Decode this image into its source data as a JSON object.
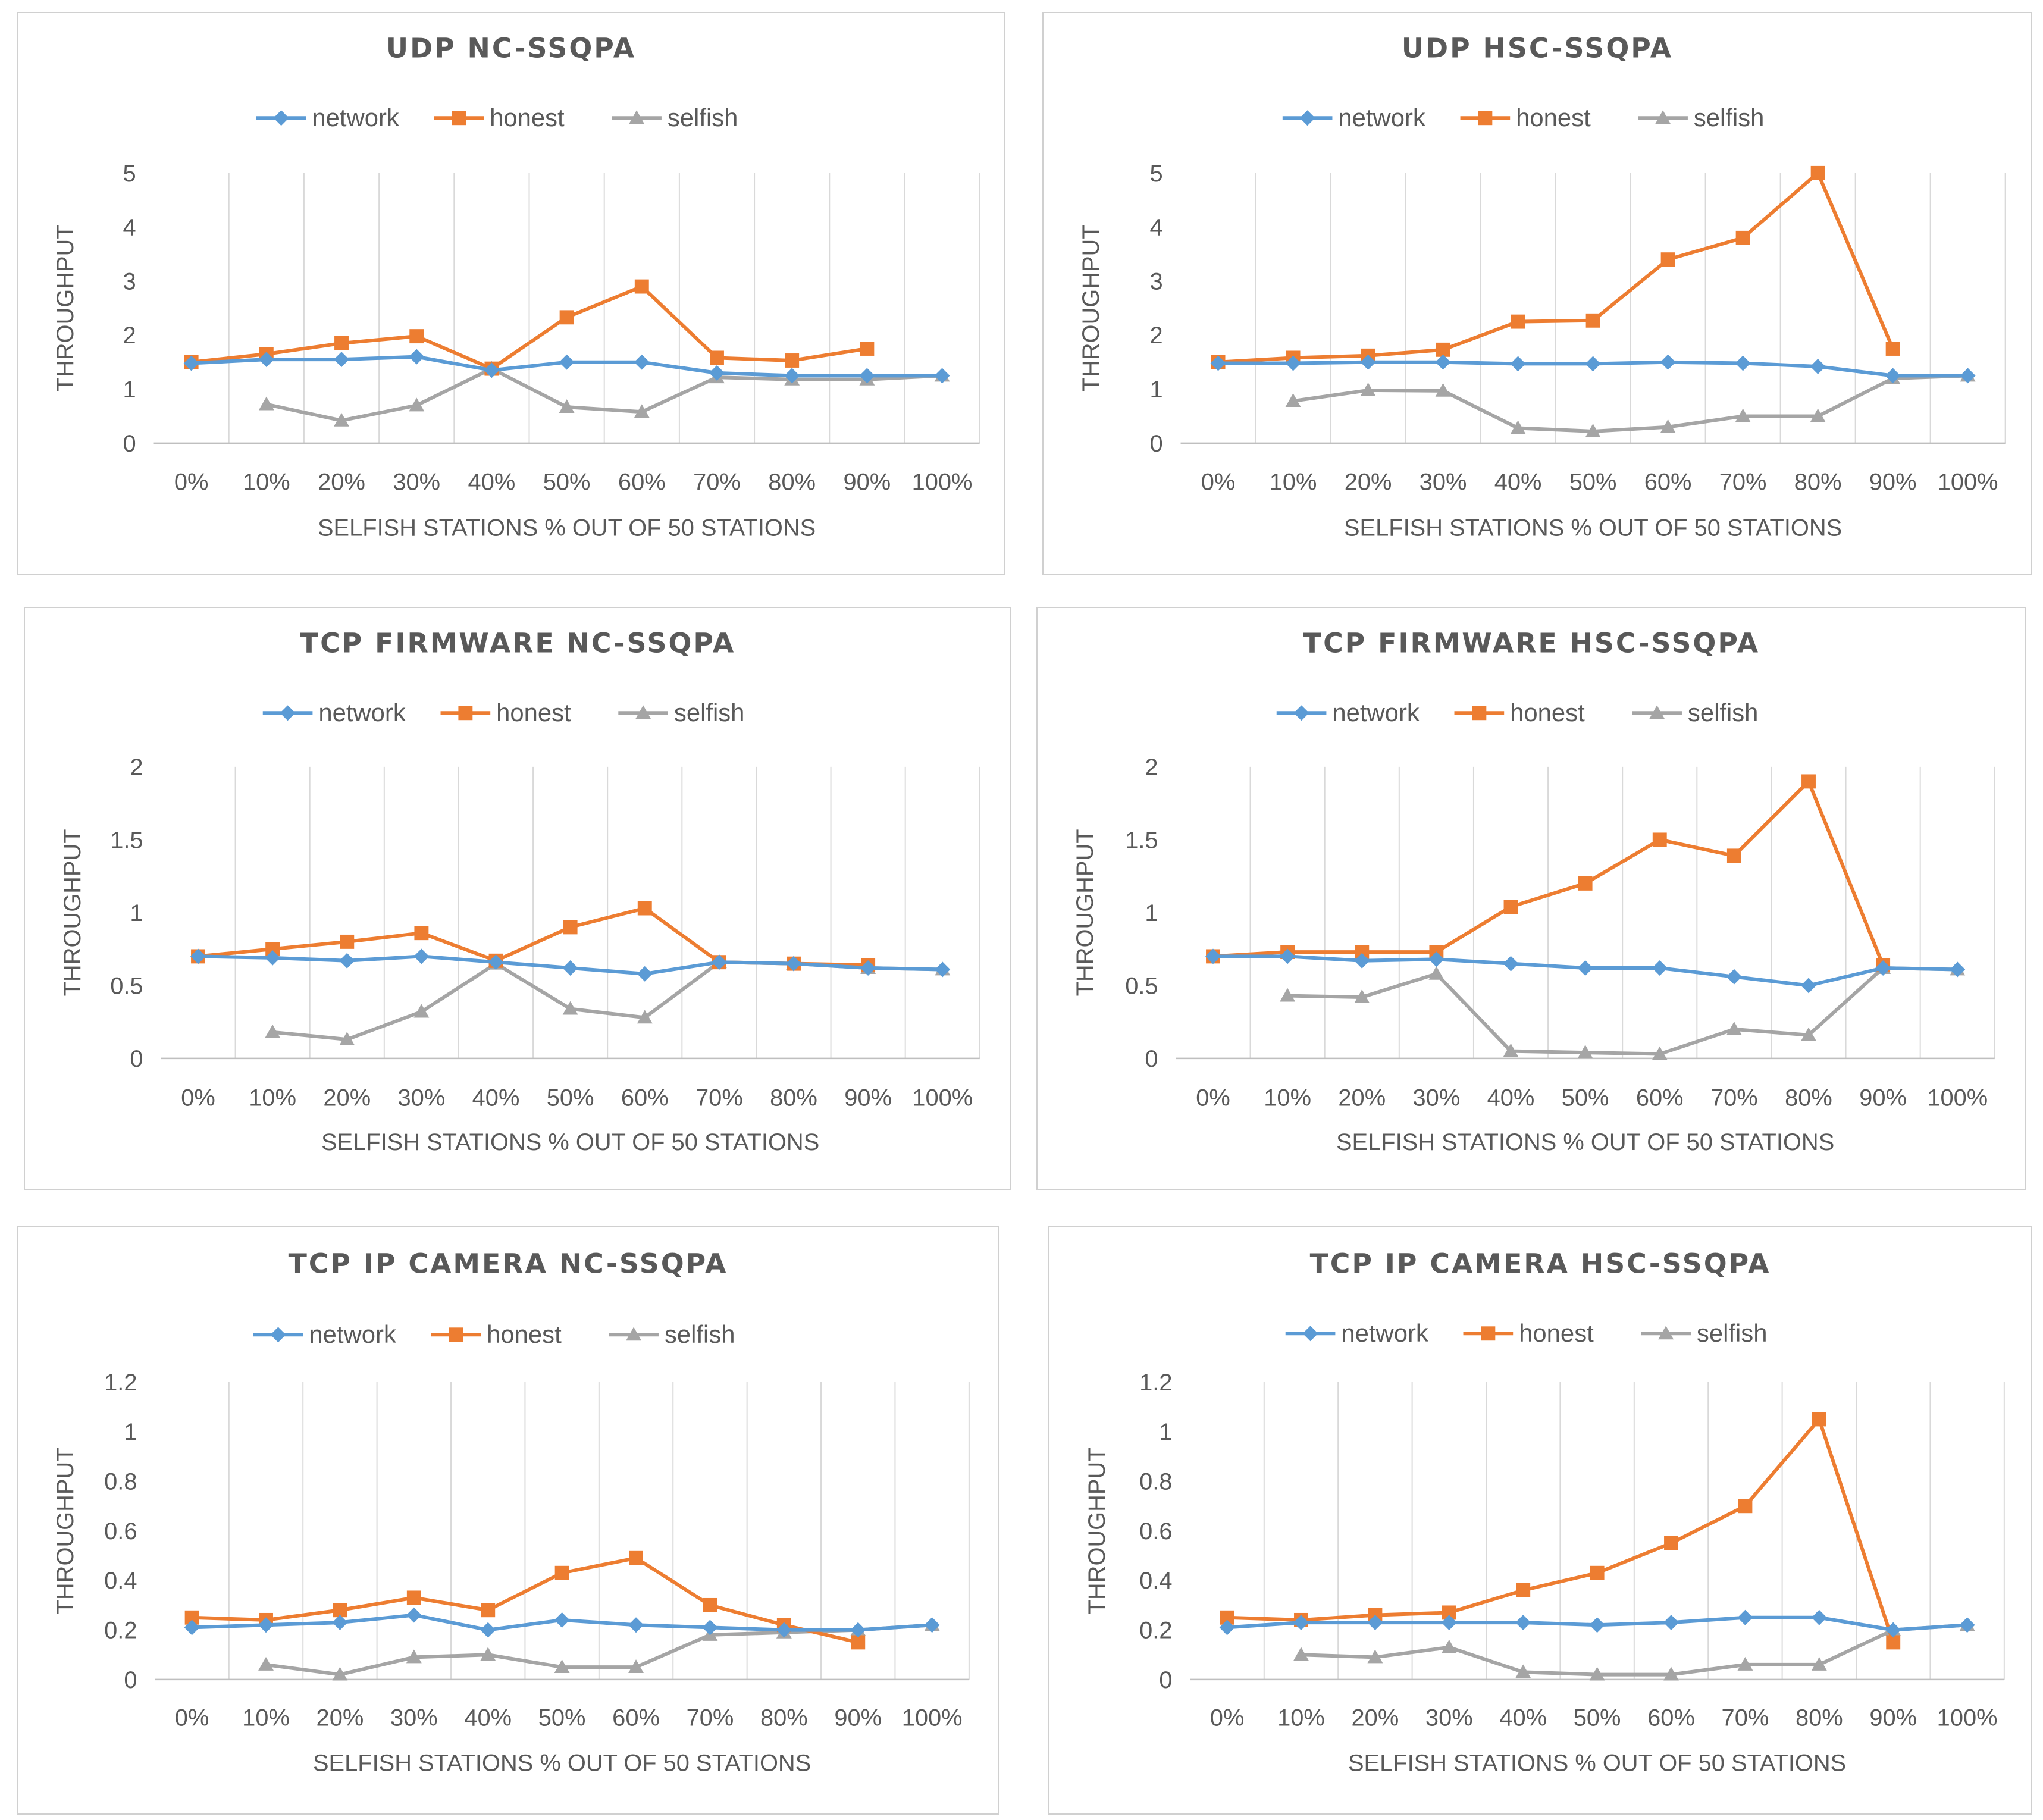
{
  "chart_data": [
    {
      "type": "line",
      "title": "UDP NC-SSQPA",
      "xlabel": "SELFISH STATIONS % OUT OF 50 STATIONS",
      "ylabel": "THROUGHPUT",
      "categories": [
        "0%",
        "10%",
        "20%",
        "30%",
        "40%",
        "50%",
        "60%",
        "70%",
        "80%",
        "90%",
        "100%"
      ],
      "ylim": [
        0,
        5
      ],
      "yticks": [
        "0",
        "1",
        "2",
        "3",
        "4",
        "5"
      ],
      "series": [
        {
          "name": "network",
          "color": "#5b9bd5",
          "marker": "diamond",
          "values": [
            1.48,
            1.55,
            1.55,
            1.6,
            1.35,
            1.5,
            1.5,
            1.3,
            1.25,
            1.25,
            1.25
          ]
        },
        {
          "name": "honest",
          "color": "#ed7d31",
          "marker": "square",
          "values": [
            1.5,
            1.65,
            1.85,
            1.98,
            1.38,
            2.33,
            2.9,
            1.58,
            1.53,
            1.75,
            null
          ]
        },
        {
          "name": "selfish",
          "color": "#a5a5a5",
          "marker": "triangle",
          "values": [
            null,
            0.72,
            0.42,
            0.7,
            1.38,
            0.67,
            0.58,
            1.22,
            1.18,
            1.18,
            1.25
          ]
        }
      ]
    },
    {
      "type": "line",
      "title": "UDP HSC-SSQPA",
      "xlabel": "SELFISH STATIONS % OUT OF 50 STATIONS",
      "ylabel": "THROUGHPUT",
      "categories": [
        "0%",
        "10%",
        "20%",
        "30%",
        "40%",
        "50%",
        "60%",
        "70%",
        "80%",
        "90%",
        "100%"
      ],
      "ylim": [
        0,
        5
      ],
      "yticks": [
        "0",
        "1",
        "2",
        "3",
        "4",
        "5"
      ],
      "series": [
        {
          "name": "network",
          "color": "#5b9bd5",
          "marker": "diamond",
          "values": [
            1.48,
            1.48,
            1.5,
            1.5,
            1.47,
            1.47,
            1.5,
            1.48,
            1.42,
            1.25,
            1.25
          ]
        },
        {
          "name": "honest",
          "color": "#ed7d31",
          "marker": "square",
          "values": [
            1.5,
            1.58,
            1.62,
            1.73,
            2.25,
            2.27,
            3.4,
            3.8,
            5.0,
            1.75,
            null
          ]
        },
        {
          "name": "selfish",
          "color": "#a5a5a5",
          "marker": "triangle",
          "values": [
            null,
            0.78,
            0.98,
            0.97,
            0.28,
            0.22,
            0.3,
            0.5,
            0.5,
            1.2,
            1.25
          ]
        }
      ]
    },
    {
      "type": "line",
      "title": "TCP FIRMWARE NC-SSQPA",
      "xlabel": "SELFISH STATIONS % OUT OF 50 STATIONS",
      "ylabel": "THROUGHPUT",
      "categories": [
        "0%",
        "10%",
        "20%",
        "30%",
        "40%",
        "50%",
        "60%",
        "70%",
        "80%",
        "90%",
        "100%"
      ],
      "ylim": [
        0,
        2
      ],
      "yticks": [
        "0",
        "0.5",
        "1",
        "1.5",
        "2"
      ],
      "series": [
        {
          "name": "network",
          "color": "#5b9bd5",
          "marker": "diamond",
          "values": [
            0.7,
            0.69,
            0.67,
            0.7,
            0.66,
            0.62,
            0.58,
            0.66,
            0.65,
            0.62,
            0.61
          ]
        },
        {
          "name": "honest",
          "color": "#ed7d31",
          "marker": "square",
          "values": [
            0.7,
            0.75,
            0.8,
            0.86,
            0.67,
            0.9,
            1.03,
            0.66,
            0.65,
            0.64,
            null
          ]
        },
        {
          "name": "selfish",
          "color": "#a5a5a5",
          "marker": "triangle",
          "values": [
            null,
            0.18,
            0.13,
            0.32,
            0.65,
            0.34,
            0.28,
            0.66,
            0.65,
            0.62,
            0.61
          ]
        }
      ]
    },
    {
      "type": "line",
      "title": "TCP FIRMWARE HSC-SSQPA",
      "xlabel": "SELFISH STATIONS % OUT OF 50 STATIONS",
      "ylabel": "THROUGHPUT",
      "categories": [
        "0%",
        "10%",
        "20%",
        "30%",
        "40%",
        "50%",
        "60%",
        "70%",
        "80%",
        "90%",
        "100%"
      ],
      "ylim": [
        0,
        2
      ],
      "yticks": [
        "0",
        "0.5",
        "1",
        "1.5",
        "2"
      ],
      "series": [
        {
          "name": "network",
          "color": "#5b9bd5",
          "marker": "diamond",
          "values": [
            0.7,
            0.7,
            0.67,
            0.68,
            0.65,
            0.62,
            0.62,
            0.56,
            0.5,
            0.62,
            0.61
          ]
        },
        {
          "name": "honest",
          "color": "#ed7d31",
          "marker": "square",
          "values": [
            0.7,
            0.73,
            0.73,
            0.73,
            1.04,
            1.2,
            1.5,
            1.39,
            1.9,
            0.64,
            null
          ]
        },
        {
          "name": "selfish",
          "color": "#a5a5a5",
          "marker": "triangle",
          "values": [
            null,
            0.43,
            0.42,
            0.58,
            0.05,
            0.04,
            0.03,
            0.2,
            0.16,
            0.62,
            0.61
          ]
        }
      ]
    },
    {
      "type": "line",
      "title": "TCP IP CAMERA NC-SSQPA",
      "xlabel": "SELFISH STATIONS % OUT OF 50 STATIONS",
      "ylabel": "THROUGHPUT",
      "categories": [
        "0%",
        "10%",
        "20%",
        "30%",
        "40%",
        "50%",
        "60%",
        "70%",
        "80%",
        "90%",
        "100%"
      ],
      "ylim": [
        0,
        1.2
      ],
      "yticks": [
        "0",
        "0.2",
        "0.4",
        "0.6",
        "0.8",
        "1",
        "1.2"
      ],
      "series": [
        {
          "name": "network",
          "color": "#5b9bd5",
          "marker": "diamond",
          "values": [
            0.21,
            0.22,
            0.23,
            0.26,
            0.2,
            0.24,
            0.22,
            0.21,
            0.2,
            0.2,
            0.22
          ]
        },
        {
          "name": "honest",
          "color": "#ed7d31",
          "marker": "square",
          "values": [
            0.25,
            0.24,
            0.28,
            0.33,
            0.28,
            0.43,
            0.49,
            0.3,
            0.22,
            0.15,
            null
          ]
        },
        {
          "name": "selfish",
          "color": "#a5a5a5",
          "marker": "triangle",
          "values": [
            null,
            0.06,
            0.02,
            0.09,
            0.1,
            0.05,
            0.05,
            0.18,
            0.19,
            0.2,
            0.22
          ]
        }
      ]
    },
    {
      "type": "line",
      "title": "TCP IP CAMERA HSC-SSQPA",
      "xlabel": "SELFISH STATIONS % OUT OF 50 STATIONS",
      "ylabel": "THROUGHPUT",
      "categories": [
        "0%",
        "10%",
        "20%",
        "30%",
        "40%",
        "50%",
        "60%",
        "70%",
        "80%",
        "90%",
        "100%"
      ],
      "ylim": [
        0,
        1.2
      ],
      "yticks": [
        "0",
        "0.2",
        "0.4",
        "0.6",
        "0.8",
        "1",
        "1.2"
      ],
      "series": [
        {
          "name": "network",
          "color": "#5b9bd5",
          "marker": "diamond",
          "values": [
            0.21,
            0.23,
            0.23,
            0.23,
            0.23,
            0.22,
            0.23,
            0.25,
            0.25,
            0.2,
            0.22
          ]
        },
        {
          "name": "honest",
          "color": "#ed7d31",
          "marker": "square",
          "values": [
            0.25,
            0.24,
            0.26,
            0.27,
            0.36,
            0.43,
            0.55,
            0.7,
            1.05,
            0.15,
            null
          ]
        },
        {
          "name": "selfish",
          "color": "#a5a5a5",
          "marker": "triangle",
          "values": [
            null,
            0.1,
            0.09,
            0.13,
            0.03,
            0.02,
            0.02,
            0.06,
            0.06,
            0.2,
            0.22
          ]
        }
      ]
    }
  ]
}
